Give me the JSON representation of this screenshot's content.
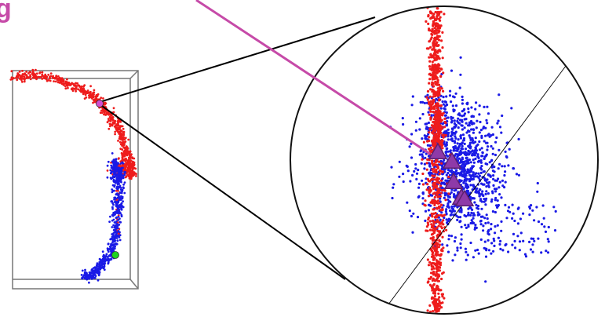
{
  "panel_label": "g",
  "colors": {
    "label": "#c64aa8",
    "pointer": "#c64aa8",
    "red_cluster": "#ee1c1c",
    "blue_cluster": "#1a1ae6",
    "highlight_point": "#d24fd2",
    "green_point": "#1ed61e",
    "triangle_fill": "#8e3aa8",
    "triangle_stroke": "#5a1f70",
    "line": "#000000",
    "box": "#777777"
  },
  "markers": {
    "triangle_count": 4,
    "highlight_point": "magenta-dot",
    "green_point": "green-dot"
  }
}
